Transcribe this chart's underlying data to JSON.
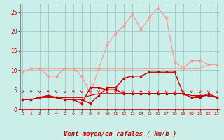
{
  "background_color": "#cceee8",
  "grid_color": "#99cccc",
  "xlabel": "Vent moyen/en rafales ( km/h )",
  "xlabel_color": "#cc0000",
  "xlabel_fontsize": 6.5,
  "tick_color": "#cc0000",
  "yticks": [
    0,
    5,
    10,
    15,
    20,
    25
  ],
  "xticks": [
    0,
    1,
    2,
    3,
    4,
    5,
    6,
    7,
    8,
    9,
    10,
    11,
    12,
    13,
    14,
    15,
    16,
    17,
    18,
    19,
    20,
    21,
    22,
    23
  ],
  "x": [
    0,
    1,
    2,
    3,
    4,
    5,
    6,
    7,
    8,
    9,
    10,
    11,
    12,
    13,
    14,
    15,
    16,
    17,
    18,
    19,
    20,
    21,
    22,
    23
  ],
  "line_rafales_upper": [
    9.5,
    10.5,
    10.5,
    8.5,
    8.5,
    10.5,
    10.5,
    8.5,
    4.0,
    10.5,
    16.5,
    19.5,
    21.5,
    24.5,
    20.5,
    23.5,
    26.0,
    23.5,
    12.0,
    10.5,
    12.5,
    12.5,
    11.5,
    11.5
  ],
  "line_rafales_flat": [
    9.5,
    10.5,
    10.5,
    10.5,
    10.5,
    10.5,
    10.5,
    10.5,
    10.5,
    10.5,
    10.5,
    10.5,
    10.5,
    10.5,
    10.5,
    10.5,
    10.5,
    10.5,
    10.5,
    10.5,
    10.5,
    10.5,
    11.5,
    11.5
  ],
  "line_moy_upper": [
    2.5,
    2.5,
    3.0,
    3.5,
    3.0,
    2.5,
    2.5,
    2.5,
    1.5,
    3.5,
    5.5,
    5.5,
    8.0,
    8.5,
    8.5,
    9.5,
    9.5,
    9.5,
    9.5,
    4.0,
    3.0,
    3.0,
    4.0,
    3.0
  ],
  "line_moy_lower": [
    2.5,
    2.5,
    3.0,
    3.5,
    3.0,
    2.5,
    2.5,
    1.5,
    5.5,
    5.5,
    5.0,
    5.0,
    4.0,
    4.0,
    4.0,
    4.0,
    4.0,
    4.0,
    4.0,
    4.0,
    3.0,
    3.5,
    3.5,
    3.0
  ],
  "line_flat1": [
    2.5,
    2.5,
    3.0,
    3.0,
    3.0,
    3.0,
    3.0,
    3.0,
    3.5,
    4.0,
    4.0,
    4.0,
    4.0,
    4.0,
    4.0,
    4.0,
    4.0,
    4.0,
    4.0,
    4.0,
    3.5,
    3.5,
    3.5,
    3.0
  ],
  "color_light": "#ff9999",
  "color_medium": "#ffaaaa",
  "color_dark": "#cc0000",
  "arrow_color": "#cc0000",
  "spine_color": "#cc0000"
}
